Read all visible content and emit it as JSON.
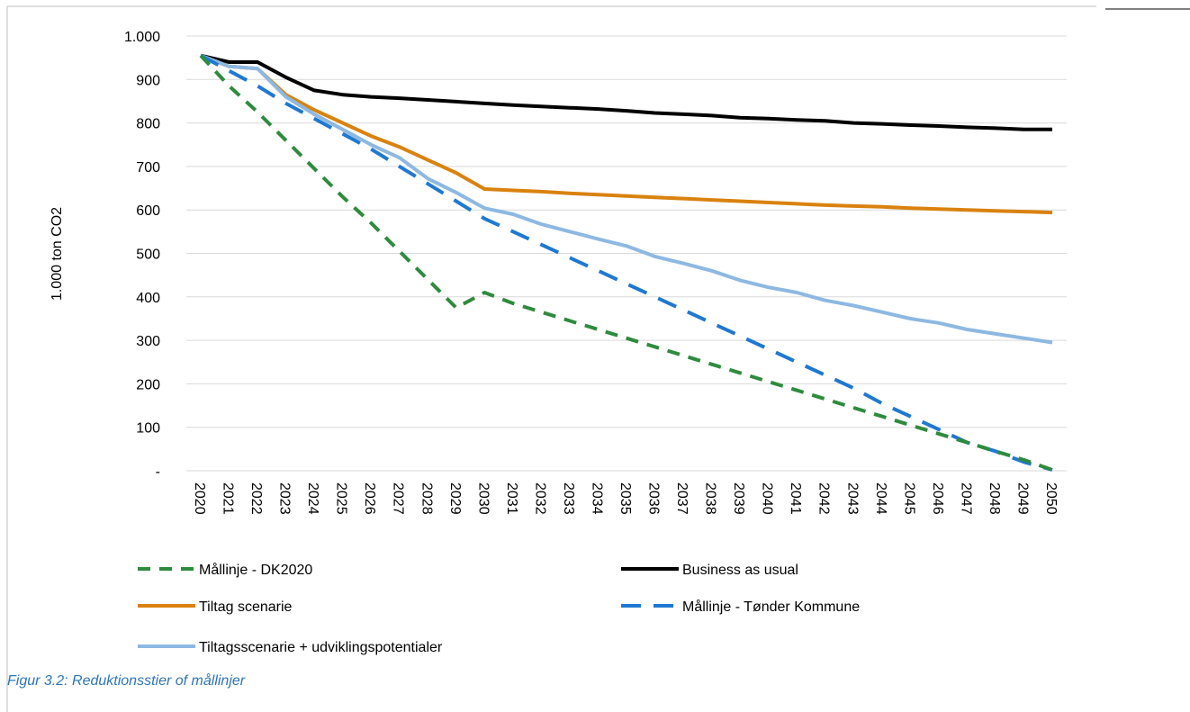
{
  "caption": "Figur 3.2: Reduktionsstier of mållinjer",
  "chart_data": {
    "type": "line",
    "ylabel": "1.000 ton CO2",
    "ylim": [
      0,
      1000
    ],
    "yticks": [
      {
        "value": 0,
        "label": "-"
      },
      {
        "value": 100,
        "label": "100"
      },
      {
        "value": 200,
        "label": "200"
      },
      {
        "value": 300,
        "label": "300"
      },
      {
        "value": 400,
        "label": "400"
      },
      {
        "value": 500,
        "label": "500"
      },
      {
        "value": 600,
        "label": "600"
      },
      {
        "value": 700,
        "label": "700"
      },
      {
        "value": 800,
        "label": "800"
      },
      {
        "value": 900,
        "label": "900"
      },
      {
        "value": 1000,
        "label": "1.000"
      }
    ],
    "x": [
      "2020",
      "2021",
      "2022",
      "2023",
      "2024",
      "2025",
      "2026",
      "2027",
      "2028",
      "2029",
      "2030",
      "2031",
      "2032",
      "2033",
      "2034",
      "2035",
      "2036",
      "2037",
      "2038",
      "2039",
      "2040",
      "2041",
      "2042",
      "2043",
      "2044",
      "2045",
      "2046",
      "2047",
      "2048",
      "2049",
      "2050"
    ],
    "grid": true,
    "legend_position": "bottom",
    "series": [
      {
        "name": "Mållinje - DK2020",
        "color": "#2e8b3e",
        "dash": "dashed",
        "values": [
          955,
          885,
          825,
          760,
          695,
          630,
          570,
          505,
          440,
          375,
          410,
          385,
          365,
          345,
          325,
          305,
          285,
          265,
          245,
          225,
          205,
          185,
          165,
          145,
          125,
          105,
          85,
          65,
          45,
          25,
          2
        ]
      },
      {
        "name": "Business as usual",
        "color": "#000000",
        "dash": "solid",
        "values": [
          955,
          940,
          940,
          905,
          875,
          865,
          860,
          857,
          853,
          849,
          845,
          841,
          838,
          835,
          832,
          828,
          823,
          820,
          817,
          812,
          810,
          807,
          805,
          800,
          798,
          795,
          793,
          790,
          788,
          785,
          785
        ]
      },
      {
        "name": "Tiltag scenarie",
        "color": "#d9820f",
        "dash": "solid",
        "values": [
          955,
          930,
          925,
          865,
          830,
          800,
          770,
          745,
          715,
          685,
          648,
          645,
          642,
          638,
          635,
          632,
          629,
          626,
          623,
          620,
          617,
          614,
          611,
          609,
          607,
          604,
          602,
          600,
          598,
          596,
          594
        ]
      },
      {
        "name": "Mållinje - Tønder Kommune",
        "color": "#1f78d1",
        "dash": "dashed",
        "values": [
          955,
          920,
          885,
          845,
          810,
          775,
          740,
          700,
          660,
          620,
          580,
          550,
          520,
          490,
          460,
          430,
          400,
          370,
          340,
          310,
          280,
          250,
          220,
          190,
          155,
          125,
          95,
          65,
          45,
          20,
          2
        ]
      },
      {
        "name": "Tiltagsscenarie + udviklingspotentialer",
        "color": "#8db8e2",
        "dash": "solid",
        "values": [
          955,
          930,
          925,
          860,
          820,
          785,
          750,
          720,
          672,
          640,
          604,
          590,
          567,
          550,
          533,
          517,
          493,
          477,
          460,
          438,
          422,
          410,
          392,
          380,
          365,
          350,
          340,
          325,
          315,
          305,
          295
        ]
      }
    ]
  }
}
